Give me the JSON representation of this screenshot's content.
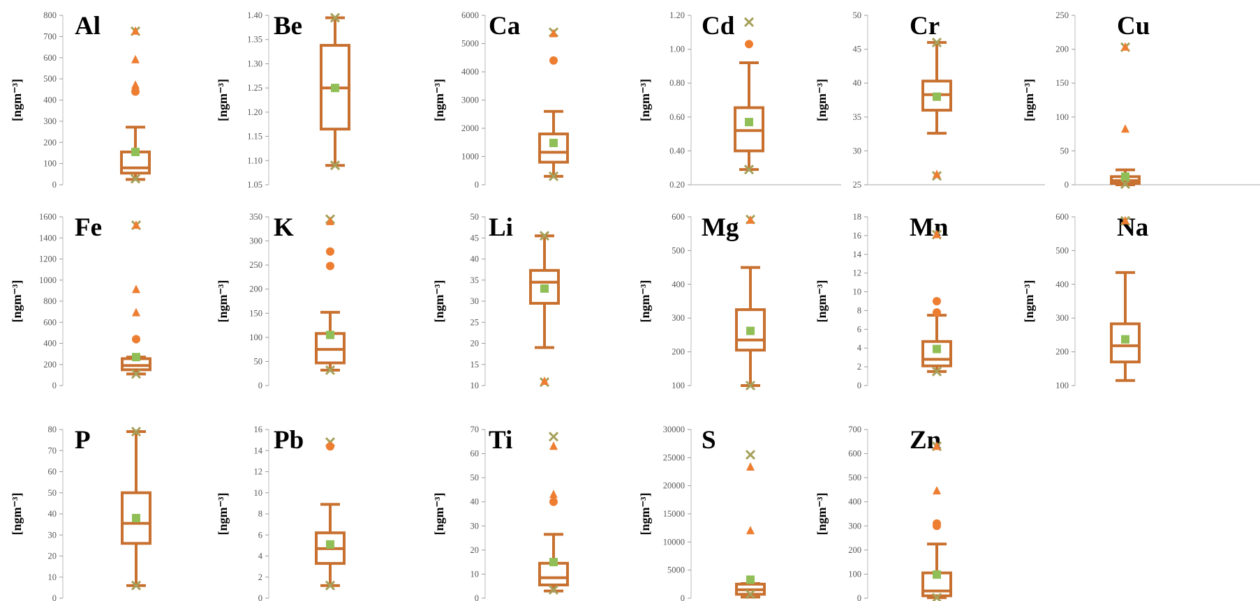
{
  "colors": {
    "box": "#c8702f",
    "mean": "#8fbf56",
    "outlier_circle": "#ed7d31",
    "outlier_triangle": "#ed7d31",
    "outlier_cross": "#a5a05a",
    "axis": "#888888",
    "text": "#000000"
  },
  "chart_data": [
    {
      "type": "box",
      "title": "Al",
      "ylabel": "[ngm⁻³]",
      "ylim": [
        0,
        800
      ],
      "yticks": [
        "0",
        "100",
        "200",
        "300",
        "400",
        "500",
        "600",
        "700",
        "800"
      ],
      "box": {
        "q1": 55,
        "median": 80,
        "q3": 155,
        "whisker_low": 25,
        "whisker_high": 272,
        "mean": 155
      },
      "outliers": [
        {
          "v": 725,
          "m": "cross"
        },
        {
          "v": 725,
          "m": "triangle"
        },
        {
          "v": 590,
          "m": "triangle"
        },
        {
          "v": 470,
          "m": "triangle"
        },
        {
          "v": 440,
          "m": "circle"
        },
        {
          "v": 28,
          "m": "cross"
        }
      ]
    },
    {
      "type": "box",
      "title": "Be",
      "ylabel": "[ngm⁻³]",
      "ylim": [
        1.05,
        1.4
      ],
      "yticks": [
        "1.05",
        "1.10",
        "1.15",
        "1.20",
        "1.25",
        "1.30",
        "1.35",
        "1.40"
      ],
      "box": {
        "q1": 1.165,
        "median": 1.25,
        "q3": 1.338,
        "whisker_low": 1.09,
        "whisker_high": 1.395,
        "mean": 1.25
      },
      "outliers": [
        {
          "v": 1.395,
          "m": "cross"
        },
        {
          "v": 1.09,
          "m": "cross"
        }
      ]
    },
    {
      "type": "box",
      "title": "Ca",
      "ylabel": "[ngm⁻³]",
      "ylim": [
        0,
        6000
      ],
      "yticks": [
        "0",
        "1000",
        "2000",
        "3000",
        "4000",
        "5000",
        "6000"
      ],
      "box": {
        "q1": 800,
        "median": 1150,
        "q3": 1800,
        "whisker_low": 300,
        "whisker_high": 2600,
        "mean": 1480
      },
      "outliers": [
        {
          "v": 5400,
          "m": "cross"
        },
        {
          "v": 5350,
          "m": "triangle"
        },
        {
          "v": 4400,
          "m": "circle"
        },
        {
          "v": 300,
          "m": "cross"
        }
      ]
    },
    {
      "type": "box",
      "title": "Cd",
      "ylabel": "[ngm⁻³]",
      "ylim": [
        0.2,
        1.2
      ],
      "yticks": [
        "0.20",
        "0.40",
        "0.60",
        "0.80",
        "1.00",
        "1.20"
      ],
      "box": {
        "q1": 0.4,
        "median": 0.52,
        "q3": 0.655,
        "whisker_low": 0.29,
        "whisker_high": 0.92,
        "mean": 0.57
      },
      "outliers": [
        {
          "v": 1.16,
          "m": "cross"
        },
        {
          "v": 1.03,
          "m": "circle"
        },
        {
          "v": 0.29,
          "m": "cross"
        }
      ]
    },
    {
      "type": "box",
      "title": "Cr",
      "ylabel": "[ngm⁻³]",
      "ylim": [
        25,
        50
      ],
      "yticks": [
        "25",
        "30",
        "35",
        "40",
        "45",
        "50"
      ],
      "box": {
        "q1": 36,
        "median": 38.3,
        "q3": 40.3,
        "whisker_low": 32.6,
        "whisker_high": 46,
        "mean": 38
      },
      "outliers": [
        {
          "v": 46,
          "m": "cross"
        },
        {
          "v": 26.3,
          "m": "cross"
        },
        {
          "v": 26.5,
          "m": "triangle"
        }
      ]
    },
    {
      "type": "box",
      "title": "Cu",
      "ylabel": "[ngm⁻³]",
      "ylim": [
        0,
        250
      ],
      "yticks": [
        "0",
        "50",
        "100",
        "150",
        "200",
        "250"
      ],
      "box": {
        "q1": 2,
        "median": 6,
        "q3": 12,
        "whisker_low": 0,
        "whisker_high": 22,
        "mean": 12
      },
      "outliers": [
        {
          "v": 203,
          "m": "cross"
        },
        {
          "v": 203,
          "m": "triangle"
        },
        {
          "v": 82,
          "m": "triangle"
        },
        {
          "v": 1,
          "m": "cross"
        }
      ]
    },
    {
      "type": "box",
      "title": "Fe",
      "ylabel": "[ngm⁻³]",
      "ylim": [
        0,
        1600
      ],
      "yticks": [
        "0",
        "200",
        "400",
        "600",
        "800",
        "1000",
        "1200",
        "1400",
        "1600"
      ],
      "box": {
        "q1": 150,
        "median": 190,
        "q3": 255,
        "whisker_low": 110,
        "whisker_high": 270,
        "mean": 270
      },
      "outliers": [
        {
          "v": 1520,
          "m": "cross"
        },
        {
          "v": 1520,
          "m": "triangle"
        },
        {
          "v": 910,
          "m": "triangle"
        },
        {
          "v": 690,
          "m": "triangle"
        },
        {
          "v": 440,
          "m": "circle"
        },
        {
          "v": 110,
          "m": "cross"
        }
      ]
    },
    {
      "type": "box",
      "title": "K",
      "ylabel": "[ngm⁻³]",
      "ylim": [
        0,
        350
      ],
      "yticks": [
        "0",
        "50",
        "100",
        "150",
        "200",
        "250",
        "300",
        "350"
      ],
      "box": {
        "q1": 47,
        "median": 75,
        "q3": 108,
        "whisker_low": 32,
        "whisker_high": 152,
        "mean": 105
      },
      "outliers": [
        {
          "v": 345,
          "m": "cross"
        },
        {
          "v": 340,
          "m": "triangle"
        },
        {
          "v": 278,
          "m": "circle"
        },
        {
          "v": 248,
          "m": "circle"
        },
        {
          "v": 32,
          "m": "cross"
        }
      ]
    },
    {
      "type": "box",
      "title": "Li",
      "ylabel": "[ngm⁻³]",
      "ylim": [
        10,
        50
      ],
      "yticks": [
        "10",
        "15",
        "20",
        "25",
        "30",
        "35",
        "40",
        "45",
        "50"
      ],
      "box": {
        "q1": 29.5,
        "median": 34.5,
        "q3": 37.3,
        "whisker_low": 19,
        "whisker_high": 45.5,
        "mean": 33
      },
      "outliers": [
        {
          "v": 45.5,
          "m": "cross"
        },
        {
          "v": 10.8,
          "m": "cross"
        },
        {
          "v": 11,
          "m": "triangle"
        }
      ]
    },
    {
      "type": "box",
      "title": "Mg",
      "ylabel": "[ngm⁻³]",
      "ylim": [
        100,
        600
      ],
      "yticks": [
        "100",
        "200",
        "300",
        "400",
        "500",
        "600"
      ],
      "box": {
        "q1": 205,
        "median": 235,
        "q3": 325,
        "whisker_low": 100,
        "whisker_high": 450,
        "mean": 262
      },
      "outliers": [
        {
          "v": 592,
          "m": "cross"
        },
        {
          "v": 590,
          "m": "triangle"
        },
        {
          "v": 100,
          "m": "cross"
        }
      ]
    },
    {
      "type": "box",
      "title": "Mn",
      "ylabel": "[ngm⁻³]",
      "ylim": [
        0,
        18
      ],
      "yticks": [
        "0",
        "2",
        "4",
        "6",
        "8",
        "10",
        "12",
        "14",
        "16",
        "18"
      ],
      "box": {
        "q1": 2.1,
        "median": 2.8,
        "q3": 4.7,
        "whisker_low": 1.5,
        "whisker_high": 7.5,
        "mean": 3.9
      },
      "outliers": [
        {
          "v": 16.1,
          "m": "cross"
        },
        {
          "v": 16.1,
          "m": "triangle"
        },
        {
          "v": 9,
          "m": "circle"
        },
        {
          "v": 7.8,
          "m": "circle"
        },
        {
          "v": 1.5,
          "m": "cross"
        }
      ]
    },
    {
      "type": "box",
      "title": "Na",
      "ylabel": "[ngm⁻³]",
      "ylim": [
        100,
        600
      ],
      "yticks": [
        "100",
        "200",
        "300",
        "400",
        "500",
        "600"
      ],
      "box": {
        "q1": 170,
        "median": 218,
        "q3": 283,
        "whisker_low": 115,
        "whisker_high": 435,
        "mean": 237
      },
      "outliers": [
        {
          "v": 588,
          "m": "cross"
        },
        {
          "v": 588,
          "m": "triangle"
        }
      ]
    },
    {
      "type": "box",
      "title": "P",
      "ylabel": "[ngm⁻³]",
      "ylim": [
        0,
        80
      ],
      "yticks": [
        "0",
        "10",
        "20",
        "30",
        "40",
        "50",
        "60",
        "70",
        "80"
      ],
      "box": {
        "q1": 26,
        "median": 35.5,
        "q3": 50,
        "whisker_low": 6,
        "whisker_high": 79,
        "mean": 38
      },
      "outliers": [
        {
          "v": 79,
          "m": "cross"
        },
        {
          "v": 6,
          "m": "cross"
        }
      ]
    },
    {
      "type": "box",
      "title": "Pb",
      "ylabel": "[ngm⁻³]",
      "ylim": [
        0,
        16
      ],
      "yticks": [
        "0",
        "2",
        "4",
        "6",
        "8",
        "10",
        "12",
        "14",
        "16"
      ],
      "box": {
        "q1": 3.3,
        "median": 4.7,
        "q3": 6.2,
        "whisker_low": 1.2,
        "whisker_high": 8.9,
        "mean": 5.1
      },
      "outliers": [
        {
          "v": 14.8,
          "m": "cross"
        },
        {
          "v": 14.4,
          "m": "circle"
        },
        {
          "v": 1.2,
          "m": "cross"
        }
      ]
    },
    {
      "type": "box",
      "title": "Ti",
      "ylabel": "[ngm⁻³]",
      "ylim": [
        0,
        70
      ],
      "yticks": [
        "0",
        "10",
        "20",
        "30",
        "40",
        "50",
        "60",
        "70"
      ],
      "box": {
        "q1": 5.5,
        "median": 8.5,
        "q3": 14.5,
        "whisker_low": 3,
        "whisker_high": 26.5,
        "mean": 15
      },
      "outliers": [
        {
          "v": 67,
          "m": "cross"
        },
        {
          "v": 63,
          "m": "triangle"
        },
        {
          "v": 43,
          "m": "triangle"
        },
        {
          "v": 40,
          "m": "circle"
        },
        {
          "v": 3.5,
          "m": "cross"
        }
      ]
    },
    {
      "type": "box",
      "title": "S",
      "ylabel": "[ngm⁻³]",
      "ylim": [
        0,
        30000
      ],
      "yticks": [
        "0",
        "5000",
        "10000",
        "15000",
        "20000",
        "25000",
        "30000"
      ],
      "box": {
        "q1": 700,
        "median": 1500,
        "q3": 2500,
        "whisker_low": 200,
        "whisker_high": 2600,
        "mean": 3300
      },
      "outliers": [
        {
          "v": 25500,
          "m": "cross"
        },
        {
          "v": 23300,
          "m": "triangle"
        },
        {
          "v": 12000,
          "m": "triangle"
        },
        {
          "v": 700,
          "m": "cross"
        }
      ]
    },
    {
      "type": "box",
      "title": "Zn",
      "ylabel": "[ngm⁻³]",
      "ylim": [
        0,
        700
      ],
      "yticks": [
        "0",
        "100",
        "200",
        "300",
        "400",
        "500",
        "600",
        "700"
      ],
      "box": {
        "q1": 10,
        "median": 30,
        "q3": 105,
        "whisker_low": 2,
        "whisker_high": 225,
        "mean": 98
      },
      "outliers": [
        {
          "v": 630,
          "m": "cross"
        },
        {
          "v": 630,
          "m": "triangle"
        },
        {
          "v": 445,
          "m": "triangle"
        },
        {
          "v": 310,
          "m": "circle"
        },
        {
          "v": 300,
          "m": "circle"
        },
        {
          "v": 2,
          "m": "cross"
        }
      ]
    }
  ]
}
